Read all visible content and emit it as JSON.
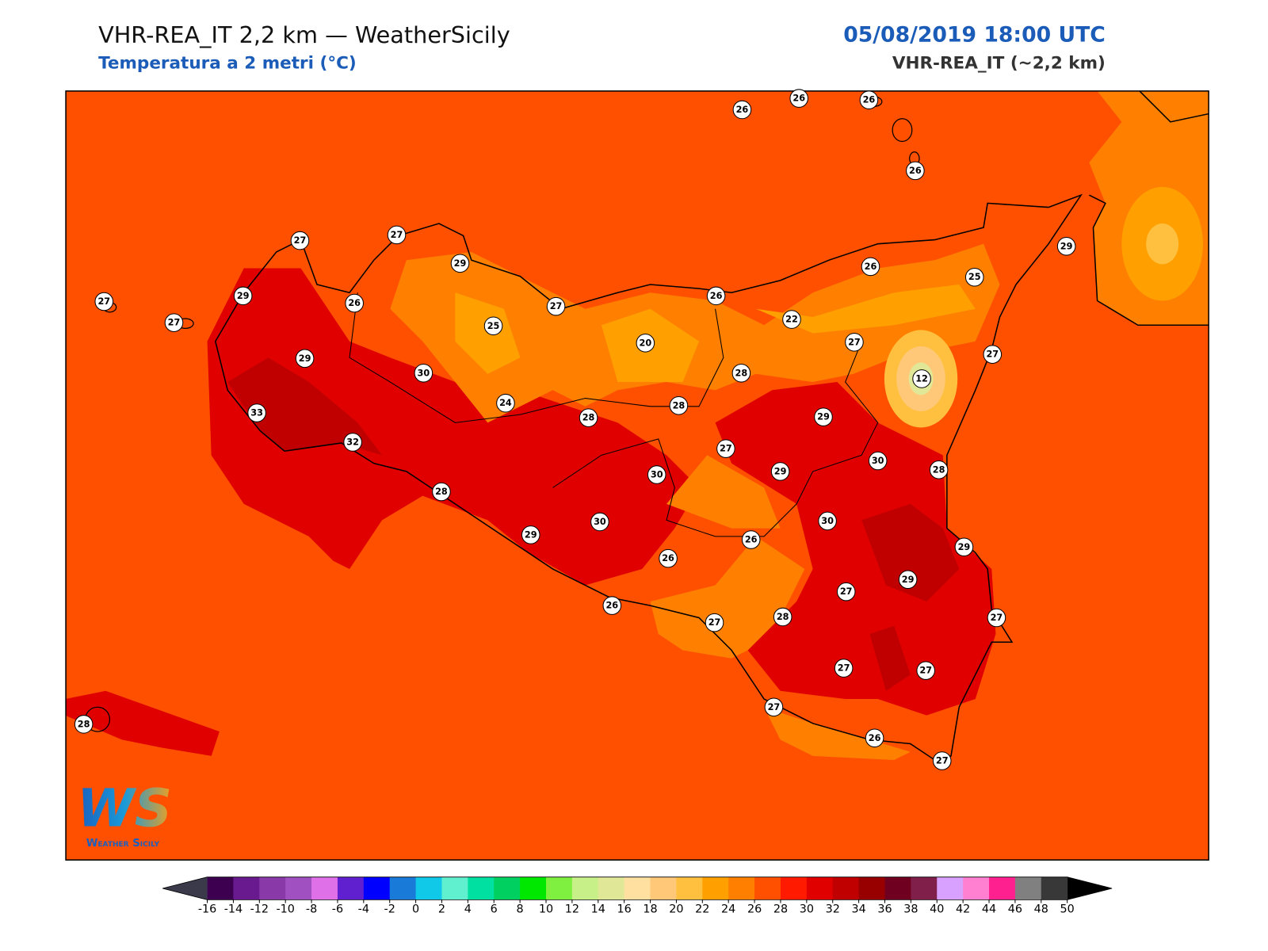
{
  "header": {
    "title": "VHR-REA_IT 2,2 km — WeatherSicily",
    "subtitle": "Temperatura a 2 metri (°C)",
    "datetime": "05/08/2019 18:00 UTC",
    "model": "VHR-REA_IT (~2,2 km)"
  },
  "stations": [
    26,
    26,
    26,
    26,
    27,
    27,
    29,
    27,
    29,
    26,
    27,
    25,
    27,
    26,
    26,
    25,
    29,
    22,
    20,
    27,
    27,
    28,
    12,
    29,
    30,
    24,
    28,
    28,
    33,
    32,
    29,
    27,
    29,
    30,
    28,
    30,
    28,
    30,
    30,
    29,
    26,
    26,
    29,
    27,
    29,
    26,
    27,
    28,
    27,
    27,
    27,
    27,
    26,
    27,
    28
  ],
  "colorbar": {
    "ticks": [
      -16,
      -14,
      -12,
      -10,
      -8,
      -6,
      -4,
      -2,
      0,
      2,
      4,
      6,
      8,
      10,
      12,
      14,
      16,
      18,
      20,
      22,
      24,
      26,
      28,
      30,
      32,
      34,
      36,
      38,
      40,
      42,
      44,
      46,
      48,
      50
    ],
    "colors": [
      "#3d0050",
      "#6a1a8f",
      "#8a3aa8",
      "#a050c0",
      "#e070e8",
      "#6020d0",
      "#0000ff",
      "#1a7ad8",
      "#10c8e8",
      "#60f0d0",
      "#00e0a0",
      "#00d060",
      "#00e800",
      "#80f040",
      "#c8f088",
      "#e0e898",
      "#ffe0a0",
      "#ffc878",
      "#ffc040",
      "#ffa000",
      "#ff8000",
      "#ff5000",
      "#ff1a00",
      "#e00000",
      "#c00000",
      "#980000",
      "#700020",
      "#80204a",
      "#d8a0ff",
      "#ff80d0",
      "#ff2090",
      "#808080",
      "#383838"
    ],
    "under_color": "#3a3a4a",
    "over_color": "#000000"
  },
  "logo": {
    "mark": "WS",
    "text": "Weather Sicily"
  }
}
